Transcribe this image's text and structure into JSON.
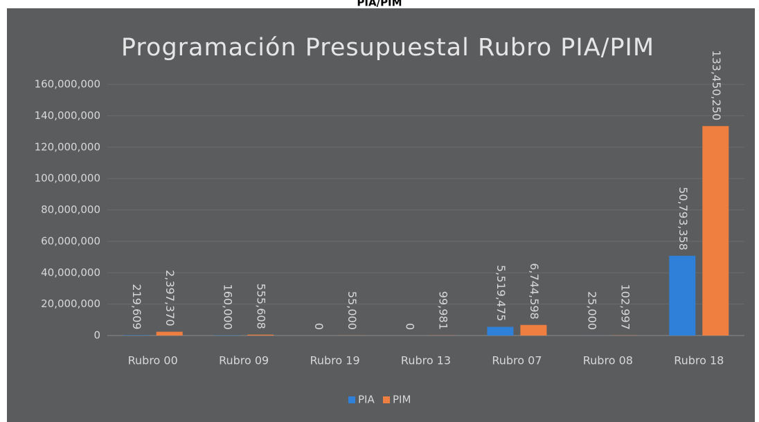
{
  "caption": "PIA/PIM",
  "chart_data": {
    "type": "bar",
    "title": "Programación Presupuestal Rubro PIA/PIM",
    "categories": [
      "Rubro 00",
      "Rubro 09",
      "Rubro 19",
      "Rubro 13",
      "Rubro 07",
      "Rubro 08",
      "Rubro 18"
    ],
    "series": [
      {
        "name": "PIA",
        "color": "#2f80d8",
        "values": [
          219609,
          160000,
          0,
          0,
          5519475,
          25000,
          50793358
        ],
        "value_labels": [
          "219,609",
          "160,000",
          "0",
          "0",
          "5,519,475",
          "25,000",
          "50,793,358"
        ]
      },
      {
        "name": "PIM",
        "color": "#ee7f40",
        "values": [
          2397370,
          555608,
          55000,
          99981,
          6744598,
          102997,
          133450250
        ],
        "value_labels": [
          "2,397,370",
          "555,608",
          "55,000",
          "99,981",
          "6,744,598",
          "102,997",
          "133,450,250"
        ]
      }
    ],
    "ylim": [
      0,
      160000000
    ],
    "yticks": [
      0,
      {
        "value": 20000000,
        "label": "20,000,000"
      },
      {
        "value": 40000000,
        "label": "40,000,000"
      },
      {
        "value": 60000000,
        "label": "60,000,000"
      },
      {
        "value": 80000000,
        "label": "80,000,000"
      },
      {
        "value": 100000000,
        "label": "100,000,000"
      },
      {
        "value": 120000000,
        "label": "120,000,000"
      },
      {
        "value": 140000000,
        "label": "140,000,000"
      },
      {
        "value": 160000000,
        "label": "160,000,000"
      }
    ],
    "grid": true,
    "legend": "bottom"
  }
}
